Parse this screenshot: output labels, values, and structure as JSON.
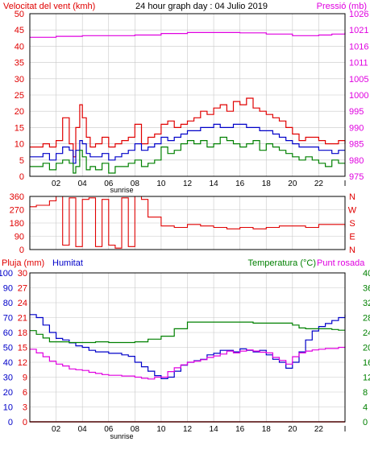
{
  "chart_data": [
    {
      "type": "line",
      "title": "24 hour graph day : 04 Julio 2019",
      "ylabel_left": "Velocitat del vent (kmh)",
      "ylabel_right": "Pressió (mb)",
      "x_ticks": [
        "02",
        "04",
        "06",
        "08",
        "10",
        "12",
        "14",
        "16",
        "18",
        "20",
        "22",
        "I"
      ],
      "x_note": "sunrise",
      "x_range": [
        0,
        24
      ],
      "ylim": [
        0,
        50
      ],
      "y_ticks": [
        "0",
        "5",
        "10",
        "15",
        "20",
        "25",
        "30",
        "35",
        "40",
        "45",
        "50"
      ],
      "ylim_right": [
        975,
        1026
      ],
      "y_ticks_right": [
        "975",
        "980",
        "985",
        "990",
        "995",
        "1000",
        "1005",
        "1011",
        "1016",
        "1021",
        "1026"
      ],
      "colors": {
        "gust": "#e00000",
        "average": "#0000c8",
        "speed": "#008000",
        "pressure": "#e000e0",
        "frame": "#000000",
        "grid": "#c8c8c8"
      },
      "series": [
        {
          "key": "gust",
          "axis": "left",
          "x": [
            0,
            0.5,
            1,
            1.5,
            2,
            2.5,
            3,
            3.3,
            3.5,
            3.8,
            4,
            4.3,
            4.6,
            5,
            5.5,
            6,
            6.5,
            7,
            7.5,
            8,
            8.5,
            9,
            9.5,
            10,
            10.5,
            11,
            11.5,
            12,
            12.5,
            13,
            13.5,
            14,
            14.5,
            15,
            15.5,
            16,
            16.5,
            17,
            17.5,
            18,
            18.5,
            19,
            19.5,
            20,
            20.5,
            21,
            21.5,
            22,
            22.5,
            23,
            23.5,
            24
          ],
          "y": [
            9,
            9,
            10,
            9,
            11,
            18,
            10,
            6,
            15,
            22,
            18,
            12,
            9,
            10,
            12,
            9,
            10,
            11,
            12,
            16,
            10,
            12,
            13,
            16,
            17,
            15,
            16,
            17,
            18,
            20,
            19,
            21,
            22,
            20,
            23,
            22,
            24,
            21,
            20,
            19,
            18,
            17,
            15,
            13,
            11,
            12,
            12,
            11,
            10,
            10,
            11,
            10
          ]
        },
        {
          "key": "average",
          "axis": "left",
          "x": [
            0,
            0.5,
            1,
            1.5,
            2,
            2.5,
            3,
            3.3,
            3.5,
            3.8,
            4,
            4.3,
            4.6,
            5,
            5.5,
            6,
            6.5,
            7,
            7.5,
            8,
            8.5,
            9,
            9.5,
            10,
            10.5,
            11,
            11.5,
            12,
            12.5,
            13,
            13.5,
            14,
            14.5,
            15,
            15.5,
            16,
            16.5,
            17,
            17.5,
            18,
            18.5,
            19,
            19.5,
            20,
            20.5,
            21,
            21.5,
            22,
            22.5,
            23,
            23.5,
            24
          ],
          "y": [
            6,
            6,
            7,
            5,
            7,
            9,
            8,
            4,
            8,
            11,
            10,
            7,
            6,
            6,
            7,
            5,
            6,
            7,
            8,
            10,
            8,
            9,
            10,
            12,
            11,
            12,
            13,
            14,
            14,
            15,
            15,
            16,
            15,
            15,
            16,
            16,
            15,
            15,
            14,
            14,
            13,
            12,
            11,
            10,
            9,
            9,
            9,
            8,
            8,
            7,
            8,
            8
          ]
        },
        {
          "key": "speed",
          "axis": "left",
          "x": [
            0,
            0.5,
            1,
            1.5,
            2,
            2.5,
            3,
            3.3,
            3.5,
            3.8,
            4,
            4.3,
            4.6,
            5,
            5.5,
            6,
            6.5,
            7,
            7.5,
            8,
            8.5,
            9,
            9.5,
            10,
            10.5,
            11,
            11.5,
            12,
            12.5,
            13,
            13.5,
            14,
            14.5,
            15,
            15.5,
            16,
            16.5,
            17,
            17.5,
            18,
            18.5,
            19,
            19.5,
            20,
            20.5,
            21,
            21.5,
            22,
            22.5,
            23,
            23.5,
            24
          ],
          "y": [
            3,
            3,
            4,
            2,
            4,
            5,
            4,
            1,
            3,
            8,
            6,
            2,
            3,
            2,
            4,
            1,
            3,
            3,
            4,
            5,
            3,
            4,
            5,
            9,
            7,
            8,
            10,
            11,
            10,
            11,
            9,
            10,
            12,
            11,
            10,
            9,
            10,
            11,
            8,
            10,
            9,
            8,
            7,
            6,
            5,
            6,
            5,
            4,
            3,
            5,
            4,
            4
          ]
        },
        {
          "key": "pressure",
          "axis": "right",
          "x": [
            0,
            2,
            4,
            6,
            8,
            10,
            12,
            14,
            16,
            18,
            20,
            22,
            23,
            24
          ],
          "y": [
            1018.6,
            1018.9,
            1019.1,
            1019.1,
            1019.3,
            1019.8,
            1020.1,
            1020.1,
            1020.0,
            1019.6,
            1019.1,
            1019.3,
            1019.6,
            1020.1
          ]
        }
      ]
    },
    {
      "type": "scatter",
      "ylabel_right": [
        "N",
        "W",
        "S",
        "E",
        "N"
      ],
      "x_range": [
        0,
        24
      ],
      "ylim": [
        0,
        360
      ],
      "y_ticks": [
        "0",
        "90",
        "180",
        "270",
        "360"
      ],
      "color": "#e00000",
      "series": [
        {
          "key": "direction",
          "x": [
            0,
            0.5,
            1,
            1.5,
            2,
            2.5,
            3,
            3.5,
            4,
            4.5,
            5,
            5.5,
            6,
            6.5,
            7,
            7.5,
            8,
            8.5,
            9,
            10,
            11,
            12,
            13,
            14,
            15,
            16,
            17,
            18,
            19,
            20,
            21,
            22,
            23,
            24
          ],
          "y": [
            290,
            300,
            300,
            330,
            360,
            30,
            350,
            20,
            340,
            350,
            20,
            340,
            30,
            10,
            350,
            20,
            360,
            340,
            220,
            160,
            150,
            170,
            160,
            150,
            140,
            150,
            140,
            150,
            160,
            160,
            150,
            170,
            170,
            150
          ]
        }
      ]
    },
    {
      "type": "line",
      "ylabel_left": "Pluja (mm)",
      "ylabel_left2": "Humitat",
      "ylabel_right": "Temperatura (°C)",
      "ylabel_right2": "Punt rosada",
      "x_ticks": [
        "02",
        "04",
        "06",
        "08",
        "10",
        "12",
        "14",
        "16",
        "18",
        "20",
        "22",
        "I"
      ],
      "x_note": "sunrise",
      "x_range": [
        0,
        24
      ],
      "ylim_rain": [
        0,
        30
      ],
      "y_ticks_rain": [
        "0",
        "3",
        "6",
        "9",
        "12",
        "15",
        "18",
        "21",
        "24",
        "27",
        "30"
      ],
      "ylim_humidity": [
        0,
        100
      ],
      "y_ticks_humidity": [
        "0",
        "10",
        "20",
        "30",
        "40",
        "50",
        "60",
        "70",
        "80",
        "90",
        "100"
      ],
      "ylim_temp": [
        0,
        40
      ],
      "y_ticks_temp": [
        "0",
        "4",
        "8",
        "12",
        "16",
        "20",
        "24",
        "28",
        "32",
        "36",
        "40"
      ],
      "colors": {
        "rain": "#e00000",
        "humidity": "#0000c8",
        "temperature": "#008000",
        "dewpoint": "#e000e0",
        "axis_rain": "#e00000",
        "axis_humidity": "#0000c8",
        "axis_temp": "#008000"
      },
      "series": [
        {
          "key": "rain",
          "axis": "rain",
          "x": [
            0,
            24
          ],
          "y": [
            0,
            0
          ]
        },
        {
          "key": "humidity",
          "axis": "humidity",
          "x": [
            0,
            0.5,
            1,
            1.5,
            2,
            2.5,
            3,
            3.5,
            4,
            4.5,
            5,
            5.5,
            6,
            6.5,
            7,
            7.5,
            8,
            8.5,
            9,
            9.5,
            10,
            10.5,
            11,
            11.5,
            12,
            12.5,
            13,
            13.5,
            14,
            14.5,
            15,
            15.5,
            16,
            16.5,
            17,
            17.5,
            18,
            18.5,
            19,
            19.5,
            20,
            20.5,
            21,
            21.5,
            22,
            22.5,
            23,
            23.5,
            24
          ],
          "y": [
            72,
            70,
            65,
            60,
            56,
            55,
            53,
            51,
            50,
            48,
            47,
            47,
            46,
            46,
            45,
            44,
            40,
            37,
            34,
            31,
            29,
            30,
            34,
            38,
            40,
            41,
            42,
            45,
            46,
            48,
            48,
            47,
            49,
            48,
            47,
            48,
            45,
            42,
            40,
            36,
            40,
            47,
            55,
            61,
            64,
            66,
            68,
            70,
            72
          ]
        },
        {
          "key": "temperature",
          "axis": "temp",
          "x": [
            0,
            0.5,
            1,
            1.5,
            2,
            2.5,
            3,
            3.5,
            4,
            5,
            6,
            7,
            8,
            9,
            10,
            11,
            12,
            13,
            14,
            15,
            16,
            17,
            18,
            19,
            20,
            20.5,
            21,
            22,
            23,
            23.5,
            24
          ],
          "y": [
            24.5,
            23.5,
            22.5,
            21.5,
            21.5,
            21.5,
            21.3,
            21.3,
            21.3,
            21.5,
            21.3,
            21.3,
            21.5,
            22.2,
            23.0,
            25.0,
            26.8,
            26.8,
            26.8,
            26.8,
            26.8,
            26.5,
            26.5,
            26.5,
            26.0,
            25.2,
            25.0,
            25.0,
            24.8,
            24.6,
            24.6
          ]
        },
        {
          "key": "dewpoint",
          "axis": "temp",
          "x": [
            0,
            0.5,
            1,
            1.5,
            2,
            2.5,
            3,
            3.5,
            4,
            4.5,
            5,
            5.5,
            6,
            6.5,
            7,
            7.5,
            8,
            8.5,
            9,
            9.5,
            10,
            10.5,
            11,
            11.5,
            12,
            12.5,
            13,
            13.5,
            14,
            14.5,
            15,
            15.5,
            16,
            16.5,
            17,
            17.5,
            18,
            18.5,
            19,
            19.5,
            20,
            20.5,
            21,
            21.5,
            22,
            22.5,
            23,
            23.5,
            24
          ],
          "y": [
            19.5,
            18.5,
            17.5,
            16.3,
            15.5,
            15.0,
            14.2,
            14.0,
            13.8,
            13.3,
            13.0,
            12.7,
            12.5,
            12.5,
            12.3,
            12.3,
            12.0,
            11.7,
            11.5,
            12.0,
            12.0,
            13.5,
            14.5,
            15.3,
            16.0,
            16.3,
            16.7,
            17.3,
            17.7,
            18.2,
            19.0,
            18.5,
            19.0,
            19.3,
            19.0,
            18.7,
            18.5,
            17.3,
            16.5,
            15.5,
            17.5,
            18.5,
            19.0,
            19.3,
            19.5,
            19.7,
            19.7,
            20.0,
            20.2
          ]
        }
      ]
    }
  ]
}
